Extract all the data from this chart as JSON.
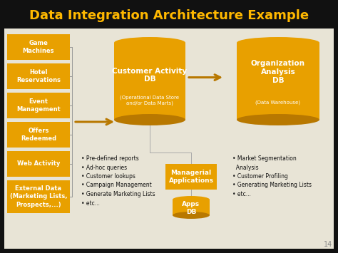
{
  "title": "Data Integration Architecture Example",
  "title_color": "#FFB800",
  "bg_color": "#111111",
  "content_bg": "#e8e4d6",
  "orange": "#E8A000",
  "orange_dark": "#B87800",
  "white": "#ffffff",
  "dark_text": "#111111",
  "left_boxes": [
    "Game\nMachines",
    "Hotel\nReservations",
    "Event\nManagement",
    "Offers\nRedeemed",
    "Web Activity",
    "External Data\n(Marketing Lists,\nProspects,...)"
  ],
  "cylinder1_title": "Customer Activity\nDB",
  "cylinder1_sub": "(Operational Data Store\nand/or Data Marts)",
  "cylinder2_title": "Organization\nAnalysis\nDB",
  "cylinder2_sub": "(Data Warehouse)",
  "middle_box": "Managerial\nApplications",
  "apps_box": "Apps\nDB",
  "left_bullets": "• Pre-defined reports\n• Ad-hoc queries\n• Customer lookups\n• Campaign Management\n• Generate Marketing Lists\n• etc...",
  "right_bullets": "• Market Segmentation\n  Analysis\n• Customer Profiling\n• Generating Marketing Lists\n• etc...",
  "page_num": "14",
  "fig_w": 4.74,
  "fig_h": 3.55,
  "dpi": 100
}
